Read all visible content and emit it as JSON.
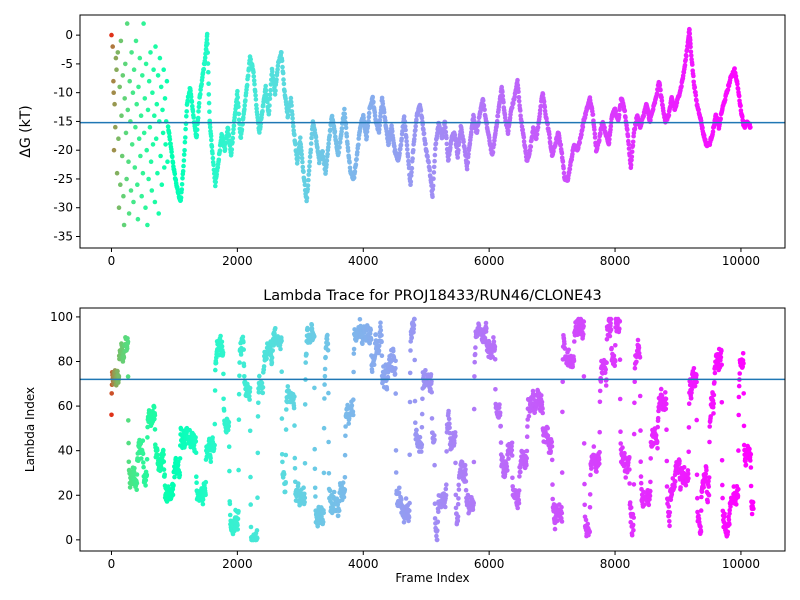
{
  "chart_data": [
    {
      "type": "scatter",
      "title": "",
      "xlabel": "",
      "ylabel": "ΔG (kT)",
      "xlim": [
        -500,
        10700
      ],
      "ylim": [
        -37,
        3.5
      ],
      "xticks": [
        0,
        2000,
        4000,
        6000,
        8000,
        10000
      ],
      "yticks": [
        0,
        -5,
        -10,
        -15,
        -20,
        -25,
        -30,
        -35
      ],
      "hline": -15.2,
      "hline_color": "#1f77b4",
      "colormap": "rainbow",
      "grid": false,
      "trace": [
        [
          900,
          -16
        ],
        [
          950,
          -20
        ],
        [
          1000,
          -24
        ],
        [
          1050,
          -27
        ],
        [
          1100,
          -29
        ],
        [
          1150,
          -22
        ],
        [
          1200,
          -12
        ],
        [
          1250,
          -9
        ],
        [
          1300,
          -14
        ],
        [
          1350,
          -18
        ],
        [
          1400,
          -11
        ],
        [
          1450,
          -7
        ],
        [
          1500,
          -3
        ],
        [
          1520,
          0
        ],
        [
          1560,
          -15
        ],
        [
          1600,
          -20
        ],
        [
          1650,
          -26
        ],
        [
          1700,
          -22
        ],
        [
          1750,
          -17
        ],
        [
          1800,
          -20
        ],
        [
          1850,
          -16
        ],
        [
          1900,
          -21
        ],
        [
          1950,
          -15
        ],
        [
          2000,
          -10
        ],
        [
          2050,
          -18
        ],
        [
          2100,
          -14
        ],
        [
          2150,
          -9
        ],
        [
          2200,
          -4
        ],
        [
          2250,
          -6
        ],
        [
          2300,
          -12
        ],
        [
          2350,
          -17
        ],
        [
          2400,
          -13
        ],
        [
          2450,
          -9
        ],
        [
          2500,
          -14
        ],
        [
          2550,
          -6
        ],
        [
          2600,
          -10
        ],
        [
          2650,
          -5
        ],
        [
          2700,
          -3
        ],
        [
          2750,
          -10
        ],
        [
          2800,
          -14
        ],
        [
          2850,
          -11
        ],
        [
          2900,
          -17
        ],
        [
          2950,
          -22
        ],
        [
          3000,
          -18
        ],
        [
          3050,
          -24
        ],
        [
          3100,
          -29
        ],
        [
          3150,
          -22
        ],
        [
          3200,
          -15
        ],
        [
          3250,
          -18
        ],
        [
          3300,
          -22
        ],
        [
          3350,
          -20
        ],
        [
          3400,
          -24
        ],
        [
          3450,
          -19
        ],
        [
          3500,
          -14
        ],
        [
          3550,
          -17
        ],
        [
          3600,
          -21
        ],
        [
          3650,
          -17
        ],
        [
          3700,
          -13
        ],
        [
          3750,
          -19
        ],
        [
          3800,
          -24
        ],
        [
          3850,
          -25
        ],
        [
          3900,
          -21
        ],
        [
          3950,
          -16
        ],
        [
          4000,
          -14
        ],
        [
          4050,
          -18
        ],
        [
          4100,
          -13
        ],
        [
          4150,
          -11
        ],
        [
          4200,
          -15
        ],
        [
          4250,
          -17
        ],
        [
          4300,
          -11
        ],
        [
          4350,
          -15
        ],
        [
          4400,
          -19
        ],
        [
          4450,
          -16
        ],
        [
          4500,
          -20
        ],
        [
          4550,
          -22
        ],
        [
          4600,
          -19
        ],
        [
          4650,
          -14
        ],
        [
          4700,
          -20
        ],
        [
          4750,
          -26
        ],
        [
          4800,
          -19
        ],
        [
          4850,
          -14
        ],
        [
          4900,
          -12
        ],
        [
          4950,
          -16
        ],
        [
          5000,
          -20
        ],
        [
          5050,
          -23
        ],
        [
          5100,
          -28
        ],
        [
          5150,
          -19
        ],
        [
          5200,
          -15
        ],
        [
          5250,
          -18
        ],
        [
          5300,
          -15
        ],
        [
          5350,
          -22
        ],
        [
          5400,
          -18
        ],
        [
          5450,
          -17
        ],
        [
          5500,
          -21
        ],
        [
          5550,
          -16
        ],
        [
          5600,
          -19
        ],
        [
          5650,
          -23
        ],
        [
          5700,
          -18
        ],
        [
          5750,
          -14
        ],
        [
          5800,
          -17
        ],
        [
          5850,
          -14
        ],
        [
          5900,
          -11
        ],
        [
          5950,
          -15
        ],
        [
          6000,
          -18
        ],
        [
          6050,
          -21
        ],
        [
          6100,
          -17
        ],
        [
          6150,
          -13
        ],
        [
          6200,
          -9
        ],
        [
          6250,
          -14
        ],
        [
          6300,
          -17
        ],
        [
          6350,
          -13
        ],
        [
          6400,
          -11
        ],
        [
          6450,
          -8
        ],
        [
          6500,
          -14
        ],
        [
          6550,
          -18
        ],
        [
          6600,
          -22
        ],
        [
          6650,
          -20
        ],
        [
          6700,
          -16
        ],
        [
          6750,
          -18
        ],
        [
          6800,
          -14
        ],
        [
          6850,
          -10
        ],
        [
          6900,
          -14
        ],
        [
          6950,
          -17
        ],
        [
          7000,
          -21
        ],
        [
          7050,
          -19
        ],
        [
          7100,
          -17
        ],
        [
          7150,
          -20
        ],
        [
          7200,
          -25
        ],
        [
          7250,
          -25
        ],
        [
          7300,
          -22
        ],
        [
          7350,
          -19
        ],
        [
          7400,
          -20
        ],
        [
          7450,
          -18
        ],
        [
          7500,
          -15
        ],
        [
          7550,
          -13
        ],
        [
          7600,
          -11
        ],
        [
          7650,
          -14
        ],
        [
          7700,
          -20
        ],
        [
          7750,
          -18
        ],
        [
          7800,
          -15
        ],
        [
          7850,
          -17
        ],
        [
          7900,
          -19
        ],
        [
          7950,
          -14
        ],
        [
          8000,
          -13
        ],
        [
          8050,
          -15
        ],
        [
          8100,
          -11
        ],
        [
          8150,
          -13
        ],
        [
          8200,
          -17
        ],
        [
          8250,
          -23
        ],
        [
          8300,
          -17
        ],
        [
          8350,
          -14
        ],
        [
          8400,
          -16
        ],
        [
          8450,
          -14
        ],
        [
          8500,
          -12
        ],
        [
          8550,
          -15
        ],
        [
          8600,
          -13
        ],
        [
          8650,
          -11
        ],
        [
          8700,
          -8
        ],
        [
          8750,
          -12
        ],
        [
          8800,
          -15
        ],
        [
          8850,
          -14
        ],
        [
          8900,
          -11
        ],
        [
          8950,
          -13
        ],
        [
          9000,
          -11
        ],
        [
          9050,
          -9
        ],
        [
          9100,
          -6
        ],
        [
          9150,
          -2
        ],
        [
          9180,
          1
        ],
        [
          9200,
          -2
        ],
        [
          9250,
          -8
        ],
        [
          9300,
          -12
        ],
        [
          9350,
          -14
        ],
        [
          9400,
          -17
        ],
        [
          9450,
          -19
        ],
        [
          9500,
          -19
        ],
        [
          9550,
          -17
        ],
        [
          9600,
          -14
        ],
        [
          9650,
          -16
        ],
        [
          9700,
          -13
        ],
        [
          9750,
          -11
        ],
        [
          9800,
          -9
        ],
        [
          9850,
          -7
        ],
        [
          9900,
          -6
        ],
        [
          9950,
          -9
        ],
        [
          10000,
          -13
        ],
        [
          10050,
          -16
        ],
        [
          10100,
          -15
        ],
        [
          10150,
          -16
        ]
      ],
      "early": [
        [
          0,
          0
        ],
        [
          20,
          -2
        ],
        [
          30,
          -8
        ],
        [
          35,
          -10
        ],
        [
          40,
          -20
        ],
        [
          50,
          -12
        ],
        [
          60,
          -16
        ],
        [
          70,
          -4
        ],
        [
          80,
          -6
        ],
        [
          90,
          -24
        ],
        [
          100,
          -3
        ],
        [
          110,
          -18
        ],
        [
          120,
          -30
        ],
        [
          130,
          -9
        ],
        [
          140,
          -26
        ],
        [
          150,
          -1
        ],
        [
          160,
          -14
        ],
        [
          170,
          -21
        ],
        [
          180,
          -7
        ],
        [
          190,
          -28
        ],
        [
          200,
          -33
        ],
        [
          210,
          -11
        ],
        [
          220,
          -5
        ],
        [
          230,
          -17
        ],
        [
          240,
          -25
        ],
        [
          250,
          2
        ],
        [
          260,
          -13
        ],
        [
          270,
          -22
        ],
        [
          280,
          -31
        ],
        [
          290,
          -8
        ],
        [
          300,
          -15
        ],
        [
          310,
          -27
        ],
        [
          320,
          -3
        ],
        [
          330,
          -19
        ],
        [
          340,
          -10
        ],
        [
          350,
          -29
        ],
        [
          360,
          -6
        ],
        [
          370,
          -23
        ],
        [
          380,
          -16
        ],
        [
          390,
          -1
        ],
        [
          400,
          -12
        ],
        [
          410,
          -26
        ],
        [
          420,
          -32
        ],
        [
          430,
          -9
        ],
        [
          440,
          -18
        ],
        [
          450,
          -4
        ],
        [
          460,
          -21
        ],
        [
          470,
          -14
        ],
        [
          480,
          -28
        ],
        [
          490,
          -7
        ],
        [
          500,
          -24
        ],
        [
          510,
          2
        ],
        [
          520,
          -17
        ],
        [
          530,
          -11
        ],
        [
          540,
          -30
        ],
        [
          550,
          -5
        ],
        [
          560,
          -20
        ],
        [
          570,
          -33
        ],
        [
          580,
          -13
        ],
        [
          590,
          -25
        ],
        [
          600,
          -8
        ],
        [
          610,
          -16
        ],
        [
          620,
          -3
        ],
        [
          630,
          -22
        ],
        [
          640,
          -27
        ],
        [
          650,
          -10
        ],
        [
          660,
          -19
        ],
        [
          670,
          -6
        ],
        [
          680,
          -14
        ],
        [
          690,
          -29
        ],
        [
          700,
          -2
        ],
        [
          710,
          -18
        ],
        [
          720,
          -12
        ],
        [
          730,
          -24
        ],
        [
          740,
          -7
        ],
        [
          750,
          -31
        ],
        [
          760,
          -15
        ],
        [
          770,
          -4
        ],
        [
          780,
          -21
        ],
        [
          790,
          -9
        ],
        [
          800,
          -26
        ],
        [
          810,
          -13
        ],
        [
          820,
          -17
        ],
        [
          830,
          -6
        ],
        [
          840,
          -23
        ],
        [
          850,
          -11
        ],
        [
          860,
          -19
        ],
        [
          870,
          -15
        ],
        [
          880,
          -8
        ],
        [
          890,
          -22
        ]
      ]
    },
    {
      "type": "scatter",
      "title": "Lambda Trace for PROJ18433/RUN46/CLONE43",
      "xlabel": "Frame Index",
      "ylabel": "Lambda Index",
      "xlim": [
        -500,
        10700
      ],
      "ylim": [
        -5,
        104
      ],
      "xticks": [
        0,
        2000,
        4000,
        6000,
        8000,
        10000
      ],
      "yticks": [
        0,
        20,
        40,
        60,
        80,
        100
      ],
      "hline": 72,
      "hline_color": "#1f77b4",
      "colormap": "rainbow",
      "grid": false,
      "n_frames": 10200
    }
  ]
}
